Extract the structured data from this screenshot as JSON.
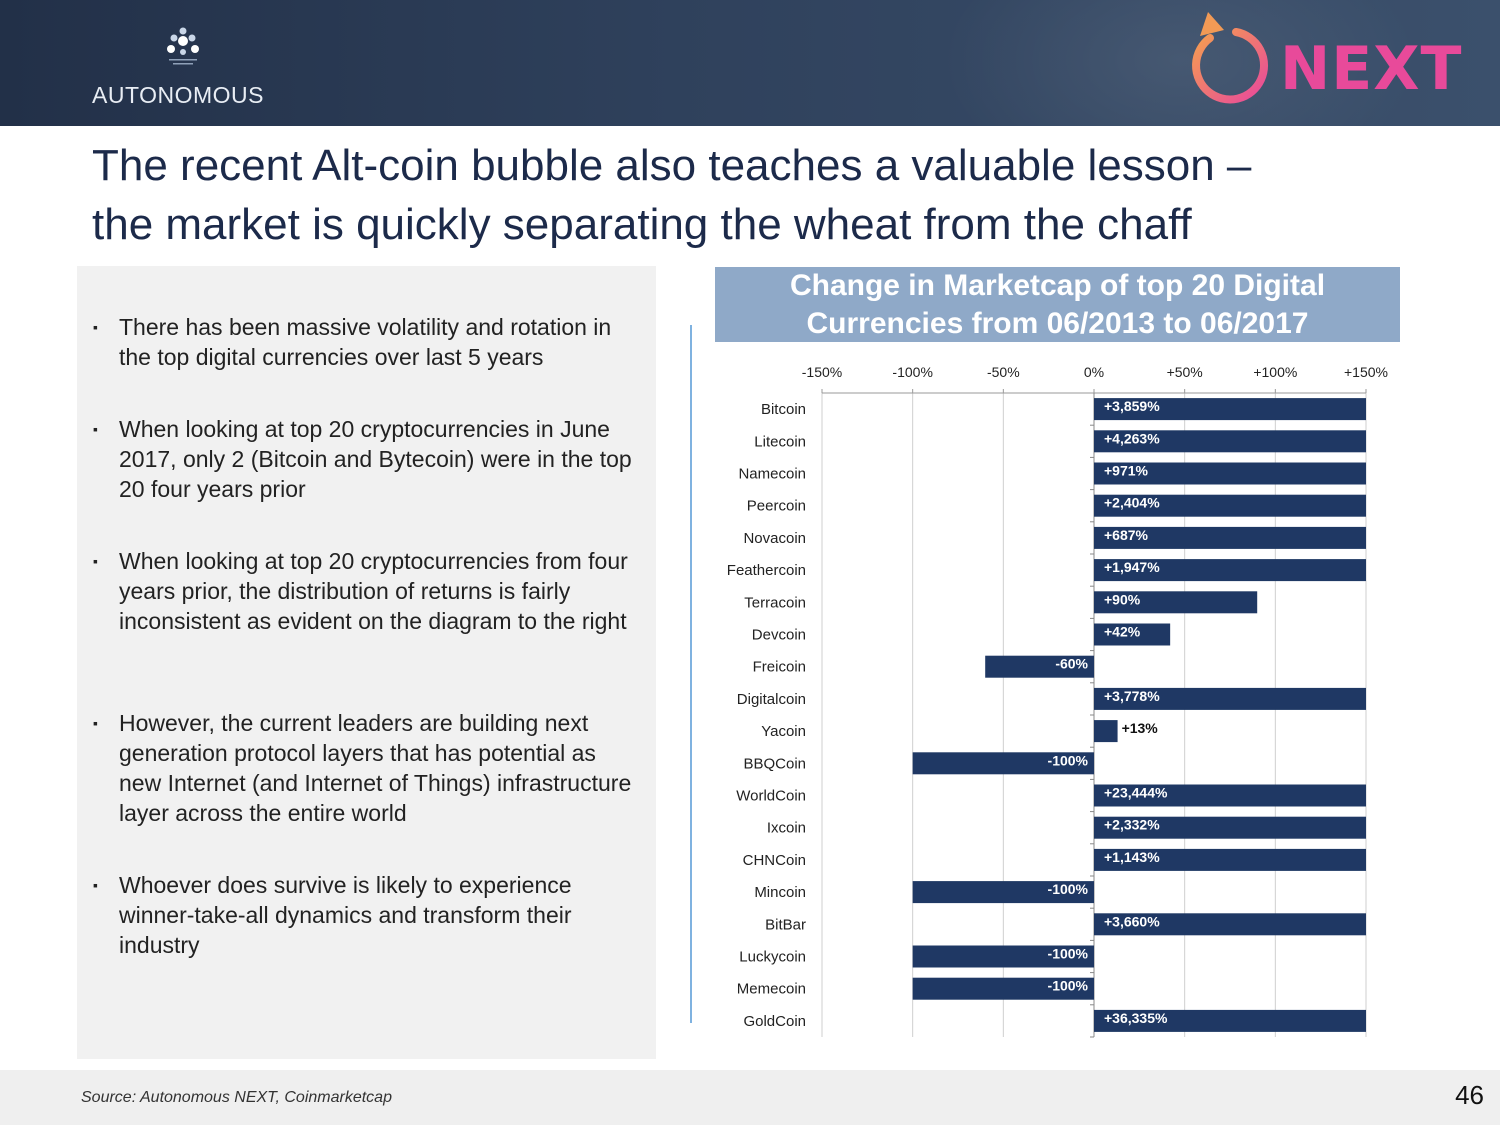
{
  "header": {
    "brand_name": "AUTONOMOUS",
    "next_label": "NEXT",
    "brand_colors": {
      "header_bg": "#2a3a54",
      "next_pink": "#e84a9a",
      "next_orange": "#f29a55"
    }
  },
  "title": {
    "line1": "The recent Alt-coin bubble also teaches a valuable lesson –",
    "line2": "the market is quickly separating the wheat from the chaff"
  },
  "bullets": [
    "There has been massive volatility and rotation in the top digital currencies over last 5 years",
    "When looking at top 20 cryptocurrencies in June 2017, only 2 (Bitcoin and Bytecoin) were in the top 20 four years prior",
    "When looking at top 20 cryptocurrencies from four years prior, the distribution of returns is fairly inconsistent as evident on the diagram to the right",
    "However, the current leaders are building next generation protocol layers that has potential as new Internet (and Internet of Things) infrastructure layer across the entire world",
    "Whoever does survive is likely to experience winner-take-all dynamics and transform their industry"
  ],
  "bullet_marker": "▪",
  "chart_data": {
    "type": "bar",
    "orientation": "horizontal",
    "title_line1": "Change in Marketcap of top 20 Digital",
    "title_line2": "Currencies from 06/2013 to 06/2017",
    "xlim": [
      -150,
      150
    ],
    "x_ticks": [
      -150,
      -100,
      -50,
      0,
      50,
      100,
      150
    ],
    "x_tick_labels": [
      "-150%",
      "-100%",
      "-50%",
      "0%",
      "+50%",
      "+100%",
      "+150%"
    ],
    "axis_position": "top",
    "grid": true,
    "bar_color": "#1f3864",
    "categories": [
      "Bitcoin",
      "Litecoin",
      "Namecoin",
      "Peercoin",
      "Novacoin",
      "Feathercoin",
      "Terracoin",
      "Devcoin",
      "Freicoin",
      "Digitalcoin",
      "Yacoin",
      "BBQCoin",
      "WorldCoin",
      "Ixcoin",
      "CHNCoin",
      "Mincoin",
      "BitBar",
      "Luckycoin",
      "Memecoin",
      "GoldCoin"
    ],
    "values": [
      3859,
      4263,
      971,
      2404,
      687,
      1947,
      90,
      42,
      -60,
      3778,
      13,
      -100,
      23444,
      2332,
      1143,
      -100,
      3660,
      -100,
      -100,
      36335
    ],
    "value_labels": [
      "+3,859%",
      "+4,263%",
      "+971%",
      "+2,404%",
      "+687%",
      "+1,947%",
      "+90%",
      "+42%",
      "-60%",
      "+3,778%",
      "+13%",
      "-100%",
      "+23,444%",
      "+2,332%",
      "+1,143%",
      "-100%",
      "+3,660%",
      "-100%",
      "-100%",
      "+36,335%"
    ]
  },
  "footer": {
    "source": "Source: Autonomous NEXT, Coinmarketcap",
    "page_number": "46"
  }
}
